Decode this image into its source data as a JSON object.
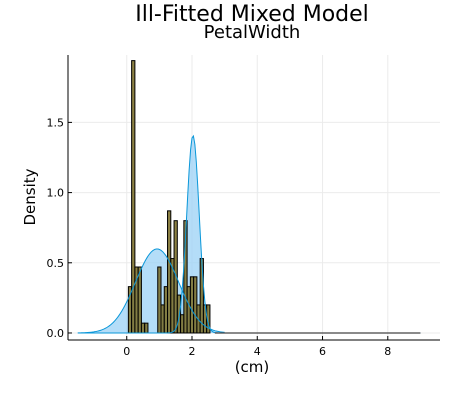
{
  "chart_data": {
    "type": "bar",
    "title": "Ill-Fitted Mixed Model",
    "subtitle": "PetalWidth",
    "xlabel": "(cm)",
    "ylabel": "Density",
    "xlim": [
      -1.8,
      9.6
    ],
    "ylim": [
      -0.05,
      1.98
    ],
    "xticks": [
      0,
      2,
      4,
      6,
      8
    ],
    "yticks": [
      0.0,
      0.5,
      1.0,
      1.5
    ],
    "ytick_labels": [
      "0.0",
      "0.5",
      "1.0",
      "1.5"
    ],
    "grid": true,
    "legend": "none",
    "colors": {
      "component_line": "#0a97d9",
      "component_fill": "#9bd2f5",
      "histogram_bar": "#7c6f2a",
      "tail_line": "#444444",
      "axis": "#000000",
      "grid": "#ebebeb"
    },
    "series": [
      {
        "type": "histogram",
        "bin_width": 0.1,
        "bars": [
          {
            "x": 0.1,
            "y": 0.33
          },
          {
            "x": 0.2,
            "y": 1.94
          },
          {
            "x": 0.3,
            "y": 0.47
          },
          {
            "x": 0.4,
            "y": 0.47
          },
          {
            "x": 0.5,
            "y": 0.07
          },
          {
            "x": 0.6,
            "y": 0.07
          },
          {
            "x": 1.0,
            "y": 0.47
          },
          {
            "x": 1.1,
            "y": 0.2
          },
          {
            "x": 1.2,
            "y": 0.33
          },
          {
            "x": 1.3,
            "y": 0.87
          },
          {
            "x": 1.4,
            "y": 0.53
          },
          {
            "x": 1.5,
            "y": 0.8
          },
          {
            "x": 1.6,
            "y": 0.27
          },
          {
            "x": 1.7,
            "y": 0.13
          },
          {
            "x": 1.8,
            "y": 0.8
          },
          {
            "x": 1.9,
            "y": 0.33
          },
          {
            "x": 2.0,
            "y": 0.4
          },
          {
            "x": 2.1,
            "y": 0.4
          },
          {
            "x": 2.2,
            "y": 0.2
          },
          {
            "x": 2.3,
            "y": 0.53
          },
          {
            "x": 2.4,
            "y": 0.2
          },
          {
            "x": 2.5,
            "y": 0.2
          }
        ]
      },
      {
        "type": "density",
        "mean": 0.93,
        "sd": 0.66,
        "weight": 0.99,
        "x_range": [
          -1.5,
          3.0
        ]
      },
      {
        "type": "density",
        "mean": 2.03,
        "sd": 0.19,
        "weight": 0.67,
        "x_range": [
          -1.5,
          9.0
        ]
      }
    ]
  }
}
